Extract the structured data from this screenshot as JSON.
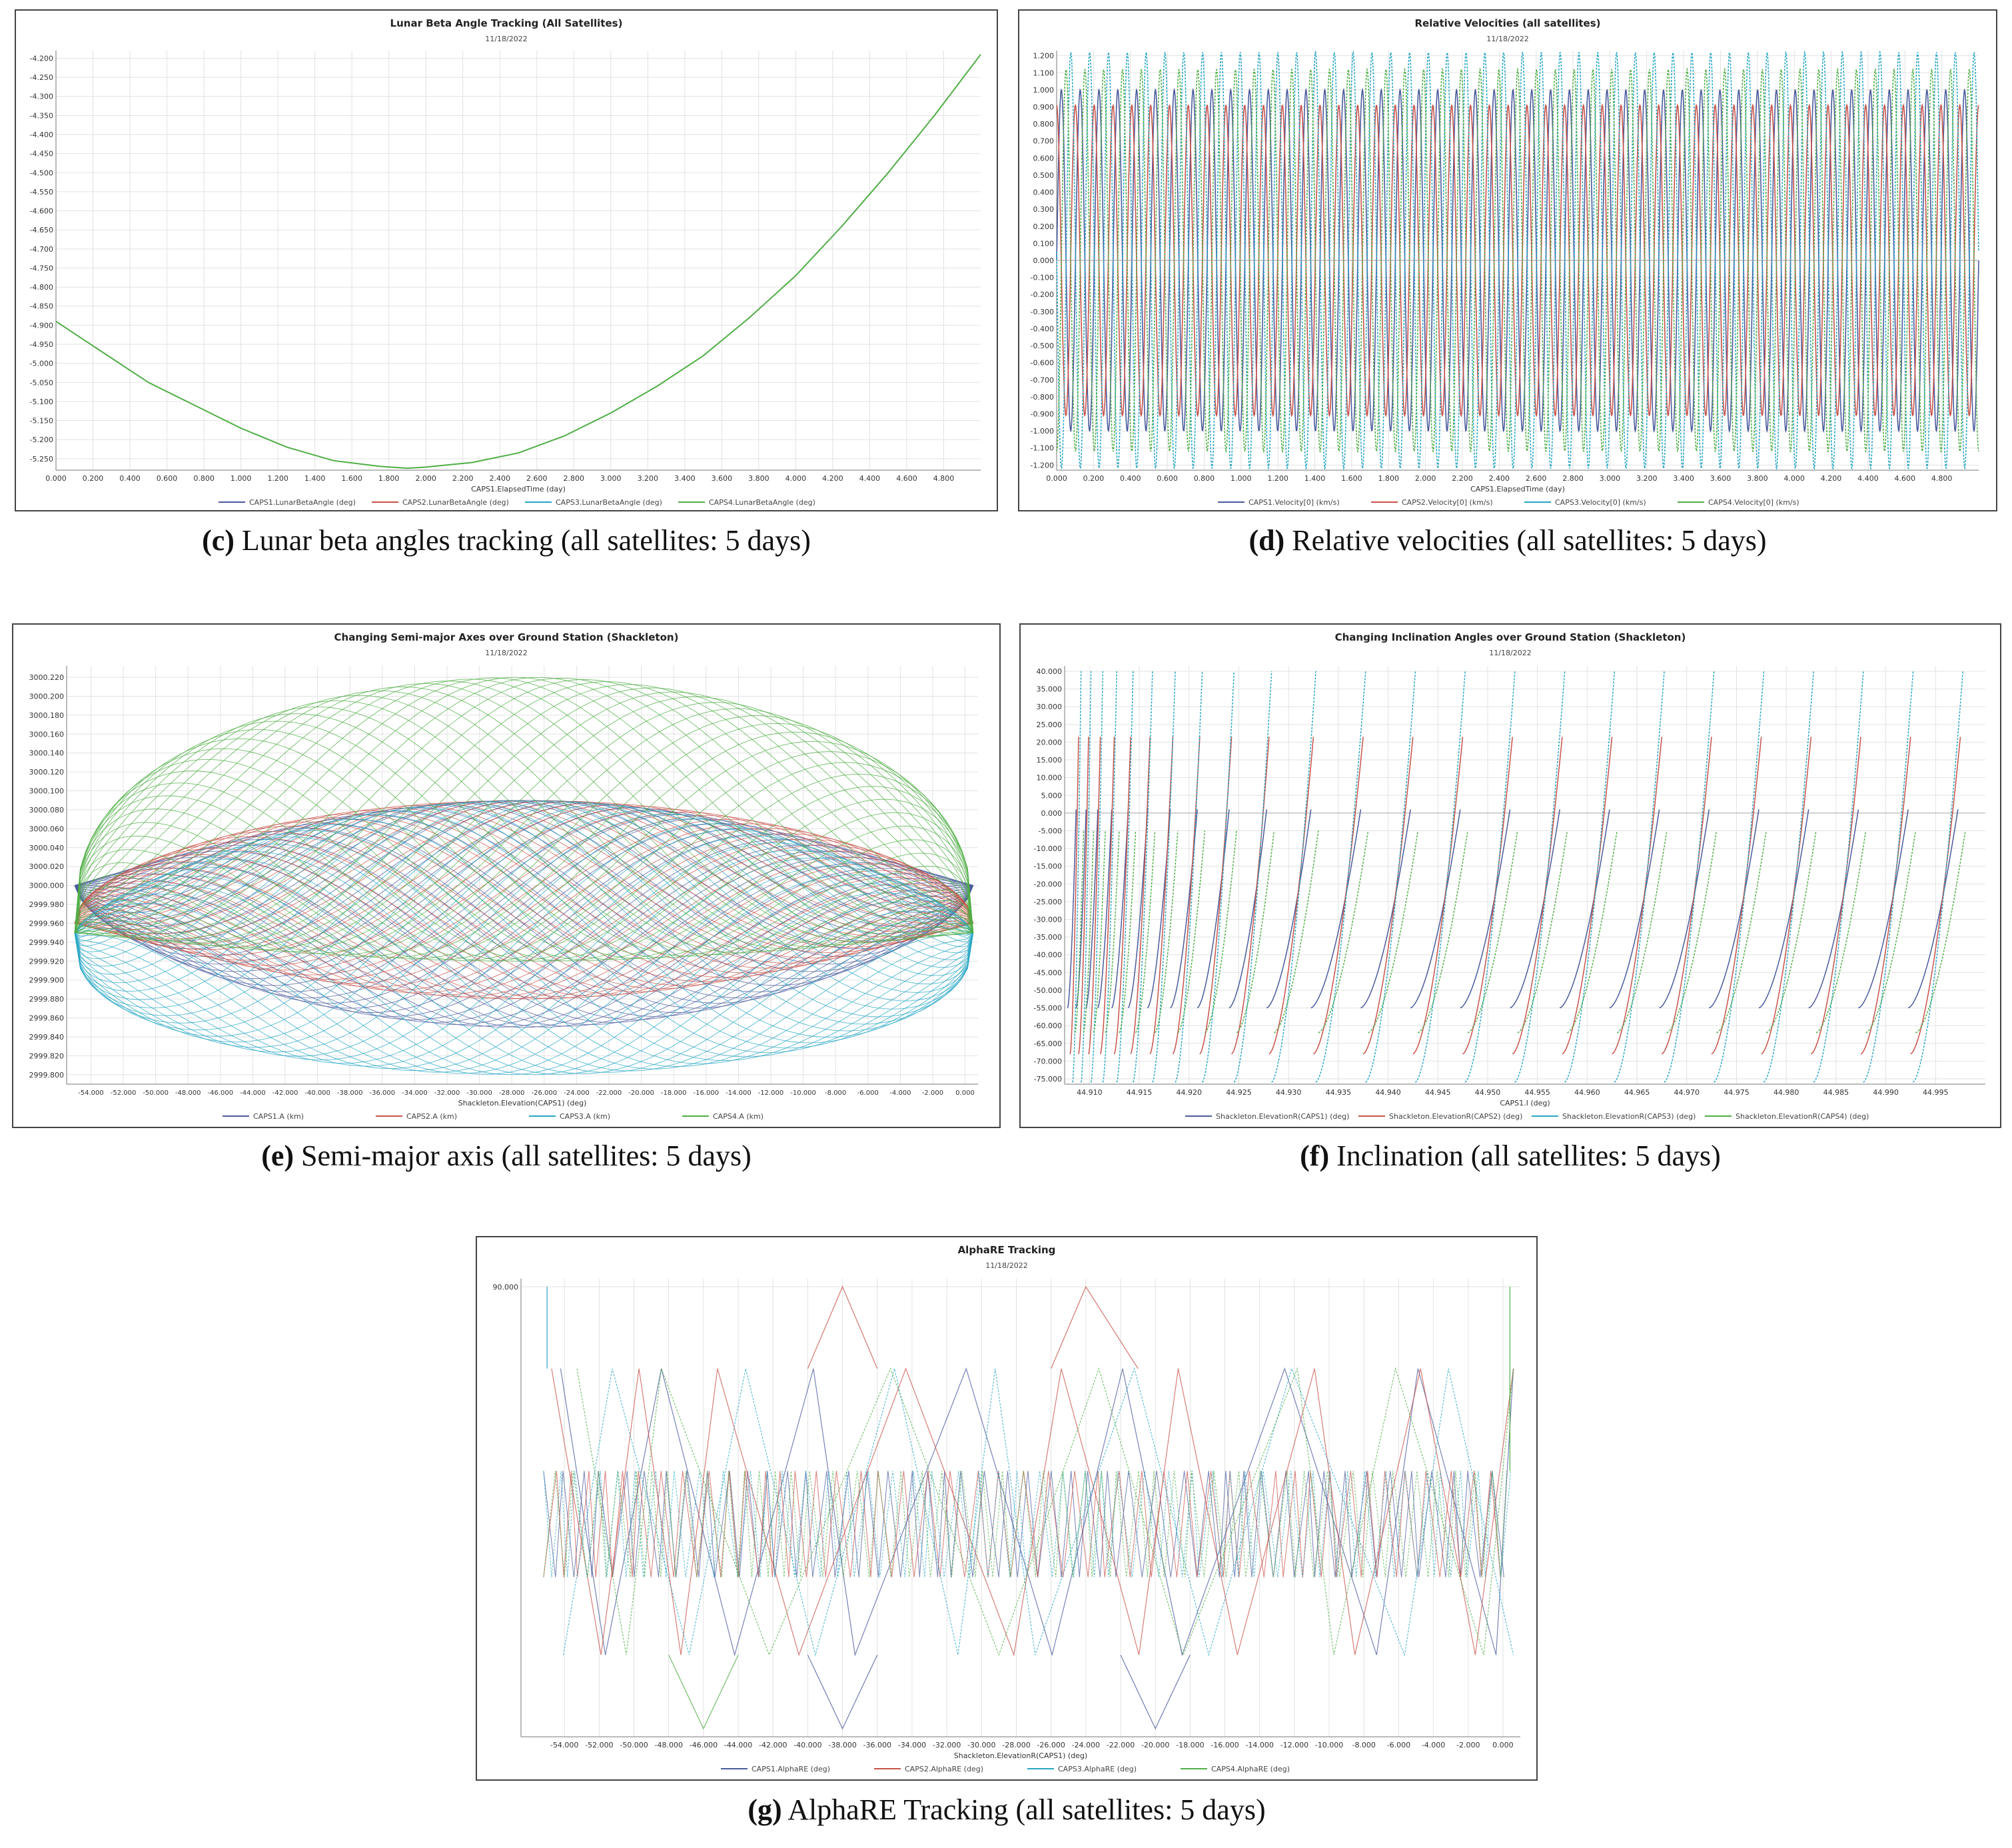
{
  "chart_data": [
    {
      "id": "c",
      "type": "line",
      "title": "Lunar Beta Angle Tracking (All Satellites)",
      "subtitle": "11/18/2022",
      "xlabel": "CAPS1.ElapsedTime (day)",
      "ylabel": "",
      "xlim": [
        0,
        5.0
      ],
      "ylim": [
        -5.28,
        -4.18
      ],
      "x_ticks": [
        "0.000",
        "0.200",
        "0.400",
        "0.600",
        "0.800",
        "1.000",
        "1.200",
        "1.400",
        "1.600",
        "1.800",
        "2.000",
        "2.200",
        "2.400",
        "2.600",
        "2.800",
        "3.000",
        "3.200",
        "3.400",
        "3.600",
        "3.800",
        "4.000",
        "4.200",
        "4.400",
        "4.600",
        "4.800"
      ],
      "x_tick_values": [
        0,
        0.2,
        0.4,
        0.6,
        0.8,
        1.0,
        1.2,
        1.4,
        1.6,
        1.8,
        2.0,
        2.2,
        2.4,
        2.6,
        2.8,
        3.0,
        3.2,
        3.4,
        3.6,
        3.8,
        4.0,
        4.2,
        4.4,
        4.6,
        4.8
      ],
      "y_ticks": [
        "-4.200",
        "-4.250",
        "-4.300",
        "-4.350",
        "-4.400",
        "-4.450",
        "-4.500",
        "-4.550",
        "-4.600",
        "-4.650",
        "-4.700",
        "-4.750",
        "-4.800",
        "-4.850",
        "-4.900",
        "-4.950",
        "-5.000",
        "-5.050",
        "-5.100",
        "-5.150",
        "-5.200",
        "-5.250"
      ],
      "y_tick_values": [
        -4.2,
        -4.25,
        -4.3,
        -4.35,
        -4.4,
        -4.45,
        -4.5,
        -4.55,
        -4.6,
        -4.65,
        -4.7,
        -4.75,
        -4.8,
        -4.85,
        -4.9,
        -4.95,
        -5.0,
        -5.05,
        -5.1,
        -5.15,
        -5.2,
        -5.25
      ],
      "legend": [
        "CAPS1.LunarBetaAngle (deg)",
        "CAPS2.LunarBetaAngle (deg)",
        "CAPS3.LunarBetaAngle (deg)",
        "CAPS4.LunarBetaAngle (deg)"
      ],
      "colors": [
        "#4a5a9c",
        "#c8524a",
        "#27a6c4",
        "#4fae45"
      ],
      "series": [
        {
          "name": "CAPS4.LunarBetaAngle (deg)",
          "x": [
            0.0,
            0.25,
            0.5,
            0.75,
            1.0,
            1.25,
            1.5,
            1.75,
            1.9,
            2.0,
            2.25,
            2.5,
            2.75,
            3.0,
            3.25,
            3.5,
            3.75,
            4.0,
            4.25,
            4.5,
            4.75,
            5.0
          ],
          "values": [
            -4.89,
            -4.97,
            -5.05,
            -5.11,
            -5.17,
            -5.22,
            -5.255,
            -5.27,
            -5.275,
            -5.272,
            -5.26,
            -5.235,
            -5.19,
            -5.13,
            -5.06,
            -4.98,
            -4.88,
            -4.77,
            -4.64,
            -4.5,
            -4.35,
            -4.19
          ]
        }
      ],
      "caption_label": "(c)",
      "caption_text": " Lunar beta angles tracking (all satellites: 5 days)"
    },
    {
      "id": "d",
      "type": "line",
      "title": "Relative Velocities (all satellites)",
      "subtitle": "11/18/2022",
      "xlabel": "CAPS1.ElapsedTime (day)",
      "ylabel": "",
      "xlim": [
        0,
        5.0
      ],
      "ylim": [
        -1.23,
        1.23
      ],
      "x_ticks": [
        "0.000",
        "0.200",
        "0.400",
        "0.600",
        "0.800",
        "1.000",
        "1.200",
        "1.400",
        "1.600",
        "1.800",
        "2.000",
        "2.200",
        "2.400",
        "2.600",
        "2.800",
        "3.000",
        "3.200",
        "3.400",
        "3.600",
        "3.800",
        "4.000",
        "4.200",
        "4.400",
        "4.600",
        "4.800"
      ],
      "x_tick_values": [
        0,
        0.2,
        0.4,
        0.6,
        0.8,
        1.0,
        1.2,
        1.4,
        1.6,
        1.8,
        2.0,
        2.2,
        2.4,
        2.6,
        2.8,
        3.0,
        3.2,
        3.4,
        3.6,
        3.8,
        4.0,
        4.2,
        4.4,
        4.6,
        4.8
      ],
      "y_ticks": [
        "1.200",
        "1.100",
        "1.000",
        "0.900",
        "0.800",
        "0.700",
        "0.600",
        "0.500",
        "0.400",
        "0.300",
        "0.200",
        "0.100",
        "0.000",
        "-0.100",
        "-0.200",
        "-0.300",
        "-0.400",
        "-0.500",
        "-0.600",
        "-0.700",
        "-0.800",
        "-0.900",
        "-1.000",
        "-1.100",
        "-1.200"
      ],
      "y_tick_values": [
        1.2,
        1.1,
        1.0,
        0.9,
        0.8,
        0.7,
        0.6,
        0.5,
        0.4,
        0.3,
        0.2,
        0.1,
        0,
        -0.1,
        -0.2,
        -0.3,
        -0.4,
        -0.5,
        -0.6,
        -0.7,
        -0.8,
        -0.9,
        -1.0,
        -1.1,
        -1.2
      ],
      "legend": [
        "CAPS1.Velocity[0] (km/s)",
        "CAPS2.Velocity[0] (km/s)",
        "CAPS3.Velocity[0] (km/s)",
        "CAPS4.Velocity[0] (km/s)"
      ],
      "colors": [
        "#4a5a9c",
        "#c8524a",
        "#27a6c4",
        "#4fae45"
      ],
      "series": [
        {
          "name": "CAPS1.Velocity[0] (km/s)",
          "amplitude": 1.0,
          "cycles": 49,
          "phase": 0.0
        },
        {
          "name": "CAPS2.Velocity[0] (km/s)",
          "amplitude": 0.91,
          "cycles": 49,
          "phase": 1.6
        },
        {
          "name": "CAPS3.Velocity[0] (km/s)",
          "amplitude": 1.22,
          "cycles": 49,
          "phase": 3.1
        },
        {
          "name": "CAPS4.Velocity[0] (km/s)",
          "amplitude": 1.12,
          "cycles": 49,
          "phase": 4.7
        }
      ],
      "caption_label": "(d)",
      "caption_text": " Relative velocities (all satellites: 5 days)"
    },
    {
      "id": "e",
      "type": "line",
      "title": "Changing Semi-major Axes over Ground Station (Shackleton)",
      "subtitle": "11/18/2022",
      "xlabel": "Shackleton.Elevation(CAPS1) (deg)",
      "ylabel": "",
      "xlim": [
        -55.5,
        0.8
      ],
      "ylim": [
        2999.79,
        3000.232
      ],
      "x_ticks": [
        "-54.000",
        "-52.000",
        "-50.000",
        "-48.000",
        "-46.000",
        "-44.000",
        "-42.000",
        "-40.000",
        "-38.000",
        "-36.000",
        "-34.000",
        "-32.000",
        "-30.000",
        "-28.000",
        "-26.000",
        "-24.000",
        "-22.000",
        "-20.000",
        "-18.000",
        "-16.000",
        "-14.000",
        "-12.000",
        "-10.000",
        "-8.000",
        "-6.000",
        "-4.000",
        "-2.000",
        "0.000"
      ],
      "x_tick_values": [
        -54,
        -52,
        -50,
        -48,
        -46,
        -44,
        -42,
        -40,
        -38,
        -36,
        -34,
        -32,
        -30,
        -28,
        -26,
        -24,
        -22,
        -20,
        -18,
        -16,
        -14,
        -12,
        -10,
        -8,
        -6,
        -4,
        -2,
        0
      ],
      "y_ticks": [
        "3000.220",
        "3000.200",
        "3000.180",
        "3000.160",
        "3000.140",
        "3000.120",
        "3000.100",
        "3000.080",
        "3000.060",
        "3000.040",
        "3000.020",
        "3000.000",
        "2999.980",
        "2999.960",
        "2999.940",
        "2999.920",
        "2999.900",
        "2999.880",
        "2999.860",
        "2999.840",
        "2999.820",
        "2999.800"
      ],
      "y_tick_values": [
        3000.22,
        3000.2,
        3000.18,
        3000.16,
        3000.14,
        3000.12,
        3000.1,
        3000.08,
        3000.06,
        3000.04,
        3000.02,
        3000.0,
        2999.98,
        2999.96,
        2999.94,
        2999.92,
        2999.9,
        2999.88,
        2999.86,
        2999.84,
        2999.82,
        2999.8
      ],
      "legend": [
        "CAPS1.A (km)",
        "CAPS2.A (km)",
        "CAPS3.A (km)",
        "CAPS4.A (km)"
      ],
      "colors": [
        "#4a5a9c",
        "#c8524a",
        "#27a6c4",
        "#4fae45"
      ],
      "series": [
        {
          "name": "CAPS1.A (km)",
          "base": 3000.0,
          "max": 3000.095,
          "min": 2999.848
        },
        {
          "name": "CAPS2.A (km)",
          "base": 2999.96,
          "max": 3000.125,
          "min": 2999.88
        },
        {
          "name": "CAPS3.A (km)",
          "base": 2999.95,
          "max": 3000.095,
          "min": 2999.8
        },
        {
          "name": "CAPS4.A (km)",
          "base": 2999.95,
          "max": 3000.228,
          "min": 2999.915
        }
      ],
      "caption_label": "(e)",
      "caption_text": " Semi-major axis (all satellites: 5 days)"
    },
    {
      "id": "f",
      "type": "line",
      "title": "Changing Inclination Angles over Ground Station (Shackleton)",
      "subtitle": "11/18/2022",
      "xlabel": "CAPS1.I (deg)",
      "ylabel": "",
      "xlim": [
        44.9075,
        45.0
      ],
      "ylim": [
        -76.5,
        41.5
      ],
      "x_ticks": [
        "44.910",
        "44.915",
        "44.920",
        "44.925",
        "44.930",
        "44.935",
        "44.940",
        "44.945",
        "44.950",
        "44.955",
        "44.960",
        "44.965",
        "44.970",
        "44.975",
        "44.980",
        "44.985",
        "44.990",
        "44.995"
      ],
      "x_tick_values": [
        44.91,
        44.915,
        44.92,
        44.925,
        44.93,
        44.935,
        44.94,
        44.945,
        44.95,
        44.955,
        44.96,
        44.965,
        44.97,
        44.975,
        44.98,
        44.985,
        44.99,
        44.995
      ],
      "y_ticks": [
        "40.000",
        "35.000",
        "30.000",
        "25.000",
        "20.000",
        "15.000",
        "10.000",
        "5.000",
        "0.000",
        "-5.000",
        "-10.000",
        "-15.000",
        "-20.000",
        "-25.000",
        "-30.000",
        "-35.000",
        "-40.000",
        "-45.000",
        "-50.000",
        "-55.000",
        "-60.000",
        "-65.000",
        "-70.000",
        "-75.000"
      ],
      "y_tick_values": [
        40,
        35,
        30,
        25,
        20,
        15,
        10,
        5,
        0,
        -5,
        -10,
        -15,
        -20,
        -25,
        -30,
        -35,
        -40,
        -45,
        -50,
        -55,
        -60,
        -65,
        -70,
        -75
      ],
      "legend": [
        "Shackleton.ElevationR(CAPS1) (deg)",
        "Shackleton.ElevationR(CAPS2) (deg)",
        "Shackleton.ElevationR(CAPS3) (deg)",
        "Shackleton.ElevationR(CAPS4) (deg)"
      ],
      "colors": [
        "#4a5a9c",
        "#c8524a",
        "#27a6c4",
        "#4fae45"
      ],
      "series": [
        {
          "name": "Shackleton.ElevationR(CAPS1) (deg)",
          "peak": 1.0,
          "trough": -55.0
        },
        {
          "name": "Shackleton.ElevationR(CAPS2) (deg)",
          "peak": 21.5,
          "trough": -68.0
        },
        {
          "name": "Shackleton.ElevationR(CAPS3) (deg)",
          "peak": 40.0,
          "trough": -76.0
        },
        {
          "name": "Shackleton.ElevationR(CAPS4) (deg)",
          "peak": -5.0,
          "trough": -62.0
        }
      ],
      "caption_label": "(f)",
      "caption_text": " Inclination (all satellites: 5 days)"
    },
    {
      "id": "g",
      "type": "line",
      "title": "AlphaRE Tracking",
      "subtitle": "11/18/2022",
      "xlabel": "Shackleton.ElevationR(CAPS1) (deg)",
      "ylabel": "",
      "xlim": [
        -56.5,
        1.0
      ],
      "ylim": [
        -20,
        92
      ],
      "x_ticks": [
        "-54.000",
        "-52.000",
        "-50.000",
        "-48.000",
        "-46.000",
        "-44.000",
        "-42.000",
        "-40.000",
        "-38.000",
        "-36.000",
        "-34.000",
        "-32.000",
        "-30.000",
        "-28.000",
        "-26.000",
        "-24.000",
        "-22.000",
        "-20.000",
        "-18.000",
        "-16.000",
        "-14.000",
        "-12.000",
        "-10.000",
        "-8.000",
        "-6.000",
        "-4.000",
        "-2.000",
        "0.000"
      ],
      "x_tick_values": [
        -54,
        -52,
        -50,
        -48,
        -46,
        -44,
        -42,
        -40,
        -38,
        -36,
        -34,
        -32,
        -30,
        -28,
        -26,
        -24,
        -22,
        -20,
        -18,
        -16,
        -14,
        -12,
        -10,
        -8,
        -6,
        -4,
        -2,
        0
      ],
      "y_ticks": [
        "90.000"
      ],
      "y_tick_values": [
        90
      ],
      "legend": [
        "CAPS1.AlphaRE (deg)",
        "CAPS2.AlphaRE (deg)",
        "CAPS3.AlphaRE (deg)",
        "CAPS4.AlphaRE (deg)"
      ],
      "colors": [
        "#4a5a9c",
        "#c8524a",
        "#27a6c4",
        "#4fae45"
      ],
      "series": [
        {
          "name": "CAPS1.AlphaRE (deg)",
          "upper": 70,
          "lower": 0,
          "band_top": 45,
          "band_bottom": 19
        },
        {
          "name": "CAPS2.AlphaRE (deg)",
          "upper": 70,
          "lower": 0,
          "band_top": 45,
          "band_bottom": 19
        },
        {
          "name": "CAPS3.AlphaRE (deg)",
          "upper": 70,
          "lower": 0,
          "band_top": 45,
          "band_bottom": 19
        },
        {
          "name": "CAPS4.AlphaRE (deg)",
          "upper": 70,
          "lower": 0,
          "band_top": 45,
          "band_bottom": 19
        }
      ],
      "caption_label": "(g)",
      "caption_text": " AlphaRE Tracking (all satellites: 5 days)"
    }
  ]
}
